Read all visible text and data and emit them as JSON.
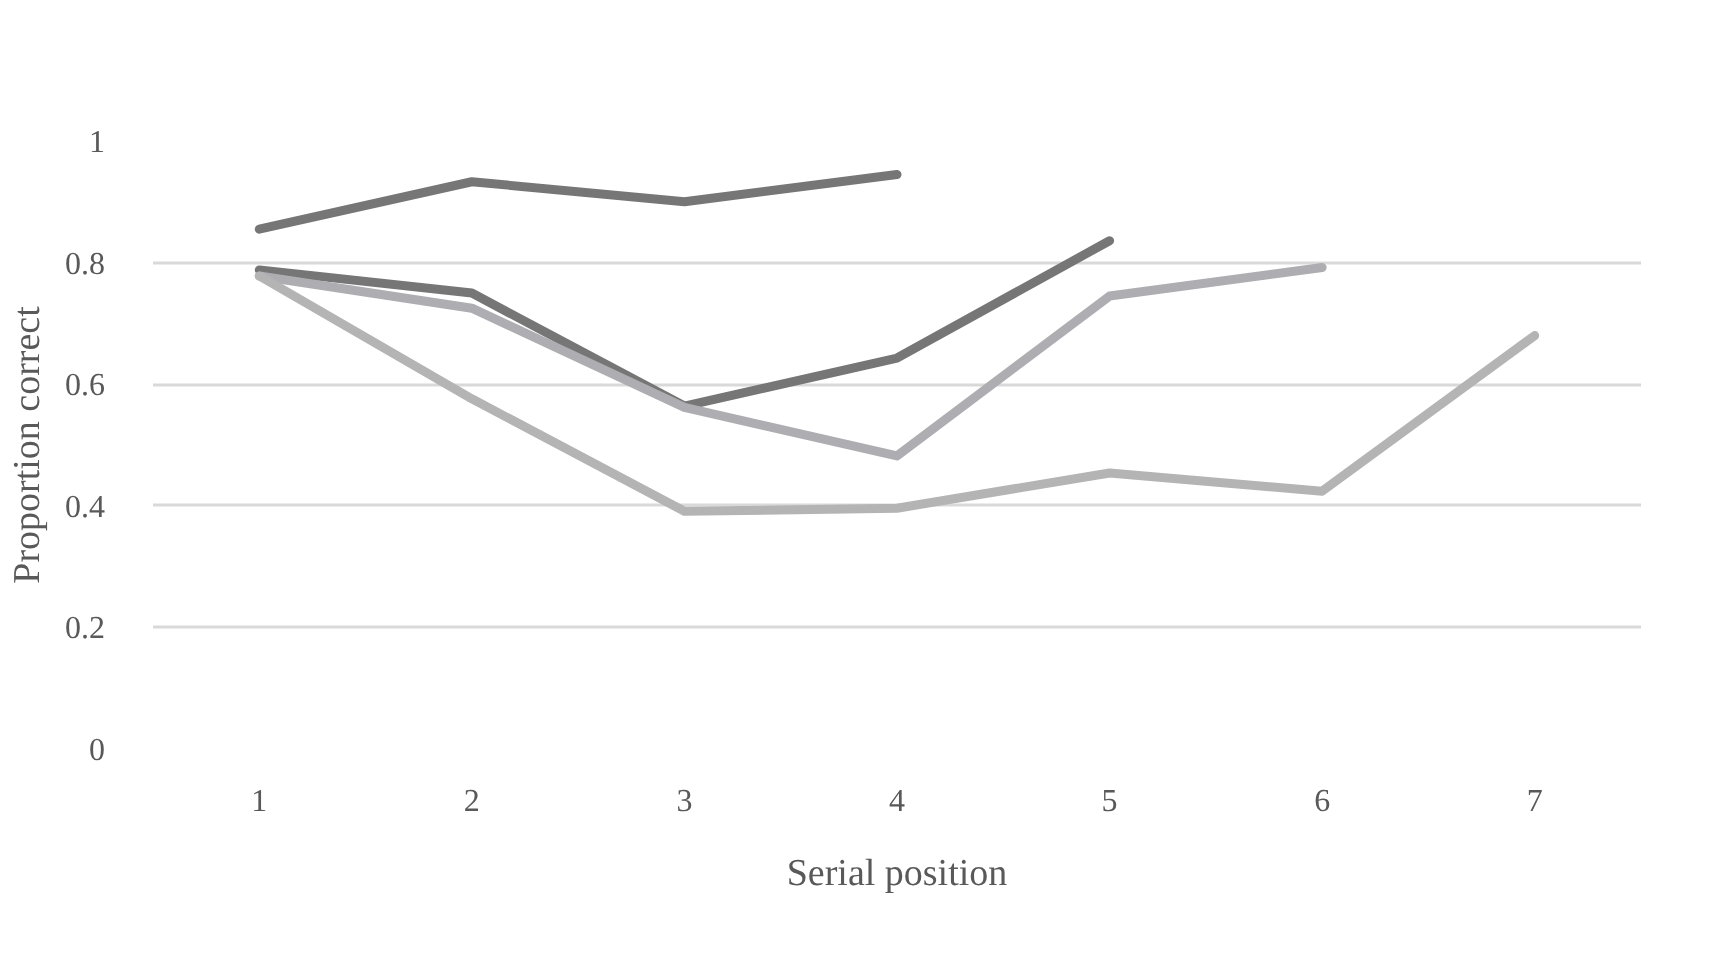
{
  "chart_data": {
    "type": "line",
    "xlabel": "Serial position",
    "ylabel": "Proportion correct",
    "categories": [
      "1",
      "2",
      "3",
      "4",
      "5",
      "6",
      "7"
    ],
    "ylim": [
      0,
      1
    ],
    "yticks": [
      0,
      0.2,
      0.4,
      0.6,
      0.8,
      1
    ],
    "grid": "y",
    "marker": "none",
    "line_style": "solid",
    "series": [
      {
        "color": "#767676",
        "values": [
          0.855,
          0.933,
          0.9,
          0.945,
          null,
          null,
          null
        ]
      },
      {
        "color": "#767676",
        "values": [
          0.788,
          0.75,
          0.564,
          0.643,
          0.836,
          null,
          null
        ]
      },
      {
        "color": "#adadb2",
        "values": [
          0.778,
          0.725,
          0.562,
          0.482,
          0.745,
          0.792,
          null
        ]
      },
      {
        "color": "#b4b4b4",
        "values": [
          0.778,
          0.576,
          0.391,
          0.396,
          0.454,
          0.424,
          0.68
        ]
      }
    ]
  }
}
